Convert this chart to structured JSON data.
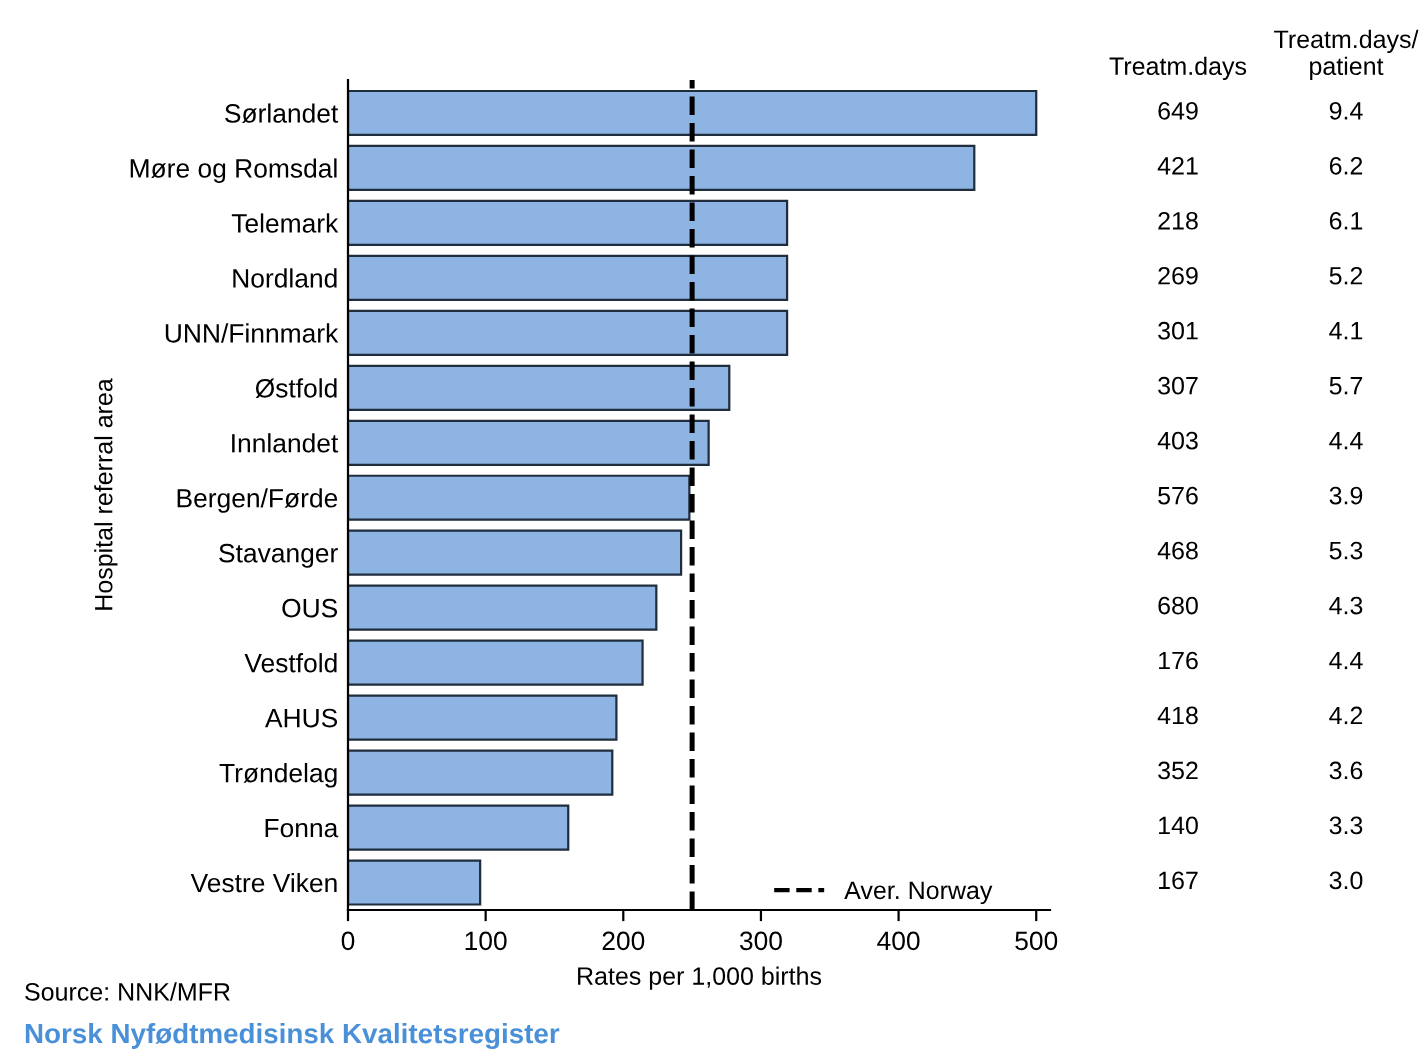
{
  "chart_data": [
    {
      "type": "bar",
      "orientation": "horizontal",
      "xlabel": "Rates per 1,000 births",
      "ylabel": "Hospital referral area",
      "categories": [
        "Sørlandet",
        "Møre og Romsdal",
        "Telemark",
        "Nordland",
        "UNN/Finnmark",
        "Østfold",
        "Innlandet",
        "Bergen/Førde",
        "Stavanger",
        "OUS",
        "Vestfold",
        "AHUS",
        "Trøndelag",
        "Fonna",
        "Vestre Viken"
      ],
      "series": [
        {
          "color": "#8db4e2",
          "values": [
            500,
            455,
            319,
            319,
            319,
            277,
            262,
            248,
            242,
            224,
            214,
            195,
            192,
            160,
            96
          ]
        }
      ],
      "xlim": [
        0,
        510
      ],
      "xticks": [
        0,
        100,
        200,
        300,
        400,
        500
      ],
      "ref_lines": [
        {
          "axis": "x",
          "value": 250,
          "label": "Aver. Norway",
          "color": "#000000",
          "line_style": "dashed"
        }
      ],
      "legend": "bottom right",
      "grid": false,
      "annotations": [
        "Source: NNK/MFR",
        "Norsk Nyfødtmedisinsk Kvalitetsregister"
      ]
    },
    {
      "type": "other",
      "title": "Treatm.days",
      "values": [
        649,
        421,
        218,
        269,
        301,
        307,
        403,
        576,
        468,
        680,
        176,
        418,
        352,
        140,
        167
      ],
      "value_labels": [
        "649",
        "421",
        "218",
        "269",
        "301",
        "307",
        "403",
        "576",
        "468",
        "680",
        "176",
        "418",
        "352",
        "140",
        "167"
      ]
    },
    {
      "type": "other",
      "title": "Treatm.days/\npatient",
      "values": [
        9.4,
        6.2,
        6.1,
        5.2,
        4.1,
        5.7,
        4.4,
        3.9,
        5.3,
        4.3,
        4.4,
        4.2,
        3.6,
        3.3,
        3.0
      ],
      "value_labels": [
        "9.4",
        "6.2",
        "6.1",
        "5.2",
        "4.1",
        "5.7",
        "4.4",
        "3.9",
        "5.3",
        "4.3",
        "4.4",
        "4.2",
        "3.6",
        "3.3",
        "3.0"
      ]
    }
  ]
}
